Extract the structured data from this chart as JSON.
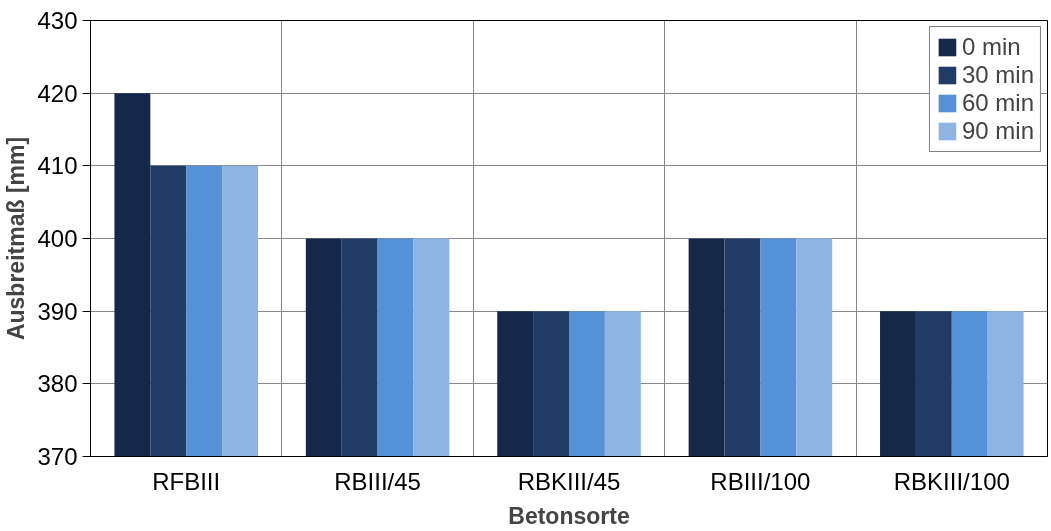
{
  "chart_data": {
    "type": "bar",
    "xlabel": "Betonsorte",
    "ylabel": "Ausbreitmaß [mm]",
    "categories": [
      "RFBIII",
      "RBIII/45",
      "RBKIII/45",
      "RBIII/100",
      "RBKIII/100"
    ],
    "series": [
      {
        "name": "0 min",
        "color": "#14284a",
        "values": [
          420,
          400,
          390,
          400,
          390
        ]
      },
      {
        "name": "30 min",
        "color": "#1f3b66",
        "values": [
          410,
          400,
          390,
          400,
          390
        ]
      },
      {
        "name": "60 min",
        "color": "#5690d6",
        "values": [
          410,
          400,
          390,
          400,
          390
        ]
      },
      {
        "name": "90 min",
        "color": "#8fb4e3",
        "values": [
          410,
          400,
          390,
          400,
          390
        ]
      }
    ],
    "ylim": [
      370,
      430
    ],
    "yticks": [
      370,
      380,
      390,
      400,
      410,
      420,
      430
    ],
    "grid": true,
    "legend": "top right"
  }
}
